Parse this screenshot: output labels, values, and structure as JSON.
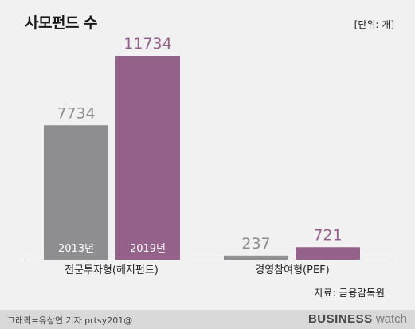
{
  "header": {
    "title": "사모펀드 수",
    "unit": "[단위: 개]"
  },
  "source": "자료: 금융감독원",
  "footer": {
    "credit": "그래픽=유상연 기자 prtsy201@",
    "logo_part1": "BUSINESS",
    "logo_part2": "watch"
  },
  "colors": {
    "series_2013": "#8e8d8f",
    "series_2019": "#93618a",
    "background": "#f1f1f1"
  },
  "chart_data": {
    "type": "bar",
    "categories": [
      "전문투자형(헤지펀드)",
      "경영참여형(PEF)"
    ],
    "series": [
      {
        "name": "2013년",
        "values": [
          7734,
          237
        ]
      },
      {
        "name": "2019년",
        "values": [
          11734,
          721
        ]
      }
    ],
    "ylim": [
      0,
      11734
    ],
    "grid": false,
    "legend": "in-bar labels"
  }
}
